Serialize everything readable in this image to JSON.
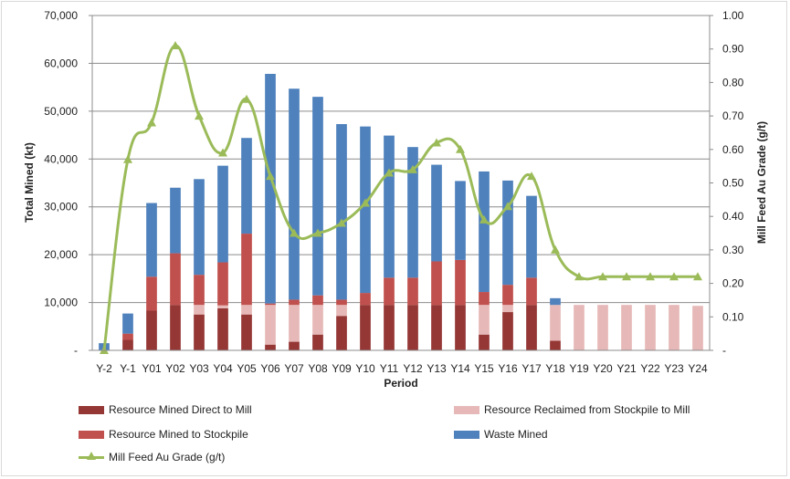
{
  "chart_data": {
    "type": "bar",
    "stacked": true,
    "categories": [
      "Y-2",
      "Y-1",
      "Y01",
      "Y02",
      "Y03",
      "Y04",
      "Y05",
      "Y06",
      "Y07",
      "Y08",
      "Y09",
      "Y10",
      "Y11",
      "Y12",
      "Y13",
      "Y14",
      "Y15",
      "Y16",
      "Y17",
      "Y18",
      "Y19",
      "Y20",
      "Y21",
      "Y22",
      "Y23",
      "Y24"
    ],
    "xlabel": "Period",
    "ylabel": "Total Mined (kt)",
    "y2label": "Mill Feed Au Grade (g/t)",
    "ylim": [
      0,
      70000
    ],
    "y2lim": [
      0,
      1.0
    ],
    "yticks": [
      "-",
      "10,000",
      "20,000",
      "30,000",
      "40,000",
      "50,000",
      "60,000",
      "70,000"
    ],
    "y2ticks": [
      "-",
      "0.10",
      "0.20",
      "0.30",
      "0.40",
      "0.50",
      "0.60",
      "0.70",
      "0.80",
      "0.90",
      "1.00"
    ],
    "grid": "horizontal",
    "legend_position": "bottom",
    "series": [
      {
        "name": "Resource Mined Direct to Mill",
        "color": "#953735",
        "values": [
          0,
          2200,
          8300,
          9500,
          7500,
          8800,
          7500,
          1200,
          1800,
          3300,
          7200,
          9500,
          9500,
          9500,
          9500,
          9500,
          3300,
          8000,
          9500,
          2000,
          0,
          0,
          0,
          0,
          0,
          0
        ]
      },
      {
        "name": "Resource Reclaimed from Stockpile to Mill",
        "color": "#e6b9b8",
        "values": [
          0,
          0,
          0,
          0,
          2000,
          600,
          2000,
          8300,
          7700,
          6200,
          2300,
          0,
          0,
          0,
          0,
          0,
          6200,
          1500,
          0,
          7500,
          9500,
          9500,
          9500,
          9500,
          9500,
          9300
        ]
      },
      {
        "name": "Resource Mined to Stockpile",
        "color": "#c0504d",
        "values": [
          0,
          1300,
          7100,
          10800,
          6300,
          9000,
          14900,
          300,
          1100,
          2000,
          1100,
          2500,
          5700,
          5700,
          9100,
          9400,
          2700,
          4200,
          5700,
          0,
          0,
          0,
          0,
          0,
          0,
          0
        ]
      },
      {
        "name": "Waste Mined",
        "color": "#4f81bd",
        "values": [
          1500,
          4200,
          15400,
          13700,
          20000,
          20200,
          20000,
          48000,
          44100,
          41500,
          36700,
          34800,
          29700,
          27300,
          20200,
          16500,
          25200,
          21800,
          17100,
          1400,
          0,
          0,
          0,
          0,
          0,
          0
        ]
      }
    ],
    "line_series": {
      "name": "Mill Feed Au Grade (g/t)",
      "color": "#9bbb59",
      "axis": "secondary",
      "values": [
        0.0,
        0.57,
        0.68,
        0.91,
        0.7,
        0.59,
        0.75,
        0.52,
        0.35,
        0.35,
        0.38,
        0.44,
        0.53,
        0.54,
        0.62,
        0.6,
        0.39,
        0.43,
        0.52,
        0.3,
        0.22,
        0.22,
        0.22,
        0.22,
        0.22,
        0.22
      ]
    }
  },
  "legend": {
    "direct": "Resource Mined Direct to Mill",
    "reclaimed": "Resource Reclaimed from Stockpile to Mill",
    "stockpile": "Resource Mined to Stockpile",
    "waste": "Waste Mined",
    "grade": "Mill Feed Au Grade (g/t)"
  },
  "colors": {
    "direct": "#953735",
    "reclaimed": "#e6b9b8",
    "stockpile": "#c0504d",
    "waste": "#4f81bd",
    "grade": "#9bbb59"
  }
}
